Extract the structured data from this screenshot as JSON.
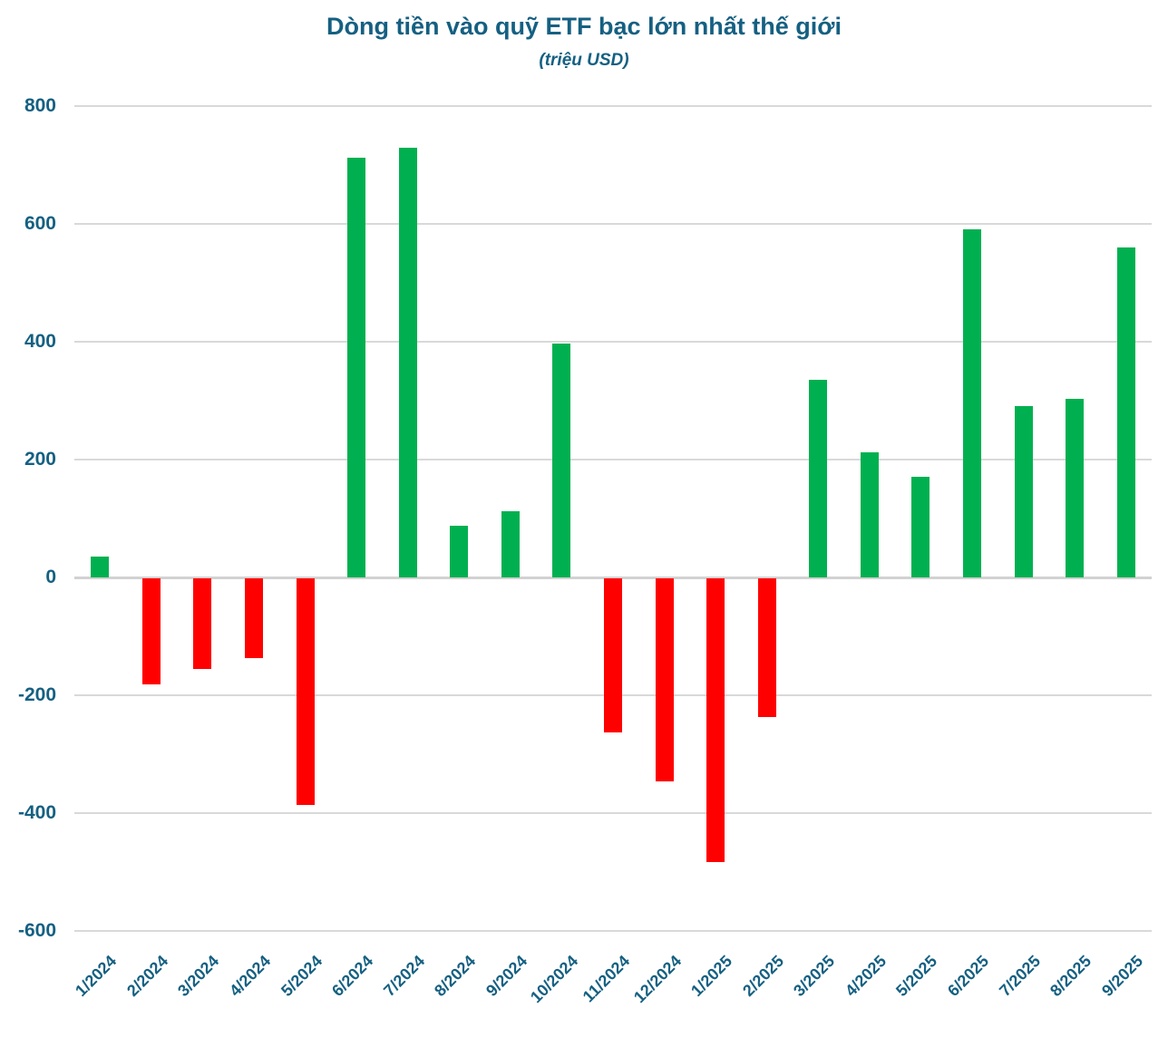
{
  "chart_data": {
    "type": "bar",
    "title": "Dòng tiền vào quỹ ETF bạc lớn nhất thế giới",
    "subtitle": "(triệu USD)",
    "categories": [
      "1/2024",
      "2/2024",
      "3/2024",
      "4/2024",
      "5/2024",
      "6/2024",
      "7/2024",
      "8/2024",
      "9/2024",
      "10/2024",
      "11/2024",
      "12/2024",
      "1/2025",
      "2/2025",
      "3/2025",
      "4/2025",
      "5/2025",
      "6/2025",
      "7/2025",
      "8/2025",
      "9/2025"
    ],
    "values": [
      35,
      -180,
      -153,
      -135,
      -385,
      712,
      729,
      88,
      113,
      397,
      -261,
      -345,
      -481,
      -235,
      335,
      212,
      170,
      590,
      291,
      303,
      560
    ],
    "xlabel": "",
    "ylabel": "",
    "yticks": [
      800,
      600,
      400,
      200,
      0,
      -200,
      -400,
      -600
    ],
    "ylim": [
      -600,
      800
    ],
    "grid": true,
    "legend": "none",
    "colors": {
      "positive_bar": "#00B050",
      "negative_bar": "#FF0000",
      "text": "#156082",
      "gridline": "#D9D9D9",
      "zero_line": "#D2D2D2",
      "background": "#FFFFFF"
    }
  }
}
